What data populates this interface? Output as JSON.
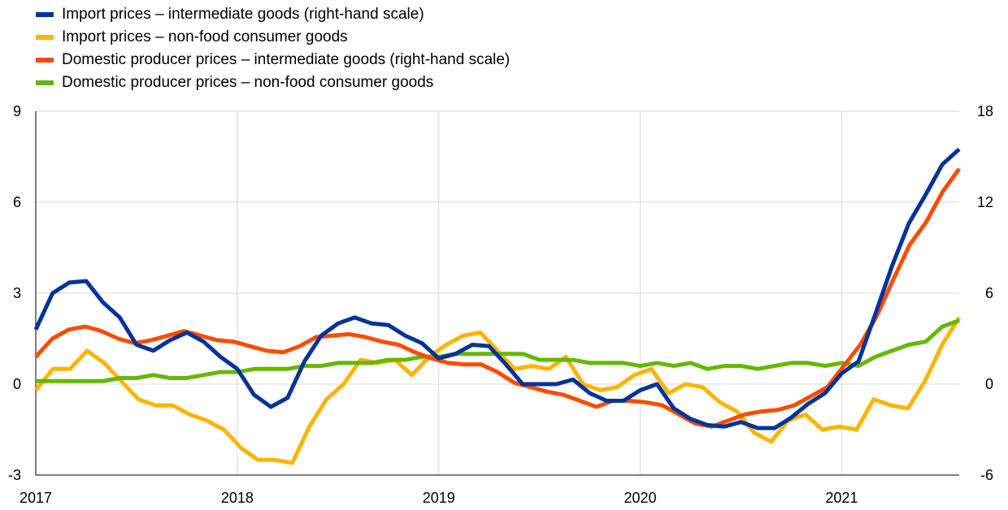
{
  "chart_data": {
    "type": "line",
    "title": "",
    "x_ticks": [
      "2017",
      "2018",
      "2019",
      "2020",
      "2021"
    ],
    "x_start": 2017,
    "x_end": 2021.5833,
    "left_axis": {
      "ylim": [
        -3,
        9
      ],
      "ticks": [
        "-3",
        "0",
        "3",
        "6",
        "9"
      ]
    },
    "right_axis": {
      "ylim": [
        -6,
        18
      ],
      "ticks": [
        "-6",
        "0",
        "6",
        "12",
        "18"
      ]
    },
    "grid": true,
    "legend_position": "top-left",
    "series": [
      {
        "name": "Import prices – intermediate goods (right-hand scale)",
        "color": "#003399",
        "axis": "right",
        "values": [
          3.6,
          6.0,
          6.7,
          6.8,
          5.4,
          4.4,
          2.6,
          2.2,
          2.9,
          3.4,
          2.8,
          1.8,
          1.0,
          -0.7,
          -1.5,
          -0.9,
          1.5,
          3.2,
          4.0,
          4.4,
          4.0,
          3.9,
          3.2,
          2.7,
          1.7,
          2.0,
          2.6,
          2.5,
          1.3,
          0.0,
          0.0,
          0.0,
          0.3,
          -0.6,
          -1.1,
          -1.1,
          -0.4,
          0.0,
          -1.6,
          -2.3,
          -2.7,
          -2.8,
          -2.5,
          -2.9,
          -2.9,
          -2.2,
          -1.3,
          -0.6,
          0.7,
          1.5,
          4.6,
          7.8,
          10.6,
          12.5,
          14.5,
          15.5
        ]
      },
      {
        "name": "Import prices – non-food consumer goods",
        "color": "#FFB400",
        "axis": "left",
        "values": [
          -0.2,
          0.5,
          0.5,
          1.1,
          0.7,
          0.1,
          -0.5,
          -0.7,
          -0.7,
          -1.0,
          -1.2,
          -1.5,
          -2.1,
          -2.5,
          -2.5,
          -2.6,
          -1.4,
          -0.5,
          0.0,
          0.8,
          0.7,
          0.8,
          0.3,
          0.9,
          1.3,
          1.6,
          1.7,
          1.1,
          0.5,
          0.6,
          0.5,
          0.9,
          0.0,
          -0.2,
          -0.1,
          0.3,
          0.5,
          -0.3,
          0.0,
          -0.1,
          -0.6,
          -0.9,
          -1.6,
          -1.9,
          -1.2,
          -1.0,
          -1.5,
          -1.4,
          -1.5,
          -0.5,
          -0.7,
          -0.8,
          0.1,
          1.3,
          2.2
        ]
      },
      {
        "name": "Domestic producer prices – intermediate goods (right-hand scale)",
        "color": "#FF4B00",
        "axis": "right",
        "values": [
          1.8,
          3.0,
          3.6,
          3.8,
          3.5,
          3.0,
          2.7,
          2.9,
          3.2,
          3.5,
          3.2,
          2.9,
          2.8,
          2.5,
          2.2,
          2.1,
          2.5,
          3.1,
          3.2,
          3.3,
          3.1,
          2.8,
          2.6,
          2.1,
          1.7,
          1.4,
          1.3,
          1.3,
          0.8,
          0.1,
          -0.2,
          -0.5,
          -0.7,
          -1.1,
          -1.5,
          -1.1,
          -1.1,
          -1.2,
          -1.4,
          -2.0,
          -2.6,
          -2.8,
          -2.4,
          -2.0,
          -1.8,
          -1.7,
          -1.4,
          -0.8,
          -0.2,
          1.2,
          2.6,
          4.5,
          6.9,
          9.2,
          10.7,
          12.7,
          14.2
        ]
      },
      {
        "name": "Domestic producer prices – non-food consumer goods",
        "color": "#65B800",
        "axis": "left",
        "values": [
          0.1,
          0.1,
          0.1,
          0.1,
          0.1,
          0.2,
          0.2,
          0.3,
          0.2,
          0.2,
          0.3,
          0.4,
          0.4,
          0.5,
          0.5,
          0.5,
          0.6,
          0.6,
          0.7,
          0.7,
          0.7,
          0.8,
          0.8,
          0.9,
          0.9,
          1.0,
          1.0,
          1.0,
          1.0,
          1.0,
          0.8,
          0.8,
          0.8,
          0.7,
          0.7,
          0.7,
          0.6,
          0.7,
          0.6,
          0.7,
          0.5,
          0.6,
          0.6,
          0.5,
          0.6,
          0.7,
          0.7,
          0.6,
          0.7,
          0.6,
          0.9,
          1.1,
          1.3,
          1.4,
          1.9,
          2.1
        ]
      }
    ]
  }
}
